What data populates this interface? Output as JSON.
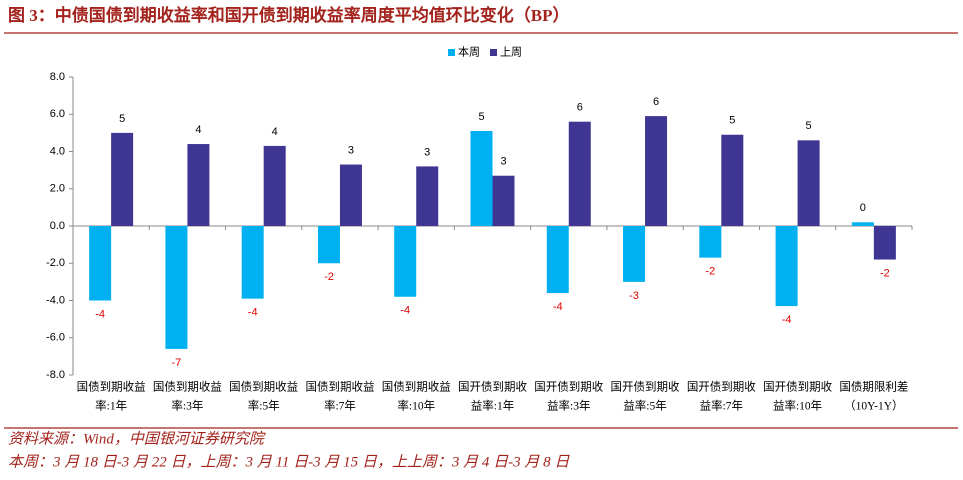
{
  "chart_data": {
    "type": "bar",
    "title": "图 3：中债国债到期收益率和国开债到期收益率周度平均值环比变化（BP）",
    "categories": [
      [
        "国债到期收益",
        "率:1年"
      ],
      [
        "国债到期收益",
        "率:3年"
      ],
      [
        "国债到期收益",
        "率:5年"
      ],
      [
        "国债到期收益",
        "率:7年"
      ],
      [
        "国债到期收益",
        "率:10年"
      ],
      [
        "国开债到期收",
        "益率:1年"
      ],
      [
        "国开债到期收",
        "益率:3年"
      ],
      [
        "国开债到期收",
        "益率:5年"
      ],
      [
        "国开债到期收",
        "益率:7年"
      ],
      [
        "国开债到期收",
        "益率:10年"
      ],
      [
        "国债期限利差",
        "（10Y-1Y）"
      ]
    ],
    "series": [
      {
        "name": "本周",
        "color": "#00b0f0",
        "values": [
          -4.0,
          -6.6,
          -3.9,
          -2.0,
          -3.8,
          5.1,
          -3.6,
          -3.0,
          -1.7,
          -4.3,
          0.2
        ],
        "value_labels": [
          "-4",
          "-7",
          "-4",
          "-2",
          "-4",
          "5",
          "-4",
          "-3",
          "-2",
          "-4",
          "0"
        ]
      },
      {
        "name": "上周",
        "color": "#3f3593",
        "values": [
          5.0,
          4.4,
          4.3,
          3.3,
          3.2,
          2.7,
          5.6,
          5.9,
          4.9,
          4.6,
          -1.8
        ],
        "value_labels": [
          "5",
          "4",
          "4",
          "3",
          "3",
          "3",
          "6",
          "6",
          "5",
          "5",
          "-2"
        ]
      }
    ],
    "ylim": [
      -8,
      8
    ],
    "yticks": [
      {
        "value": -8,
        "label": "-8.0"
      },
      {
        "value": -6,
        "label": "-6.0"
      },
      {
        "value": -4,
        "label": "-4.0"
      },
      {
        "value": -2,
        "label": "-2.0"
      },
      {
        "value": 0,
        "label": "0.0"
      },
      {
        "value": 2,
        "label": "2.0"
      },
      {
        "value": 4,
        "label": "4.0"
      },
      {
        "value": 6,
        "label": "6.0"
      },
      {
        "value": 8,
        "label": "8.0"
      }
    ],
    "source": "资料来源：Wind，中国银河证券研究院",
    "note": "本周：3 月 18 日-3 月 22 日，上周：3 月 11 日-3 月 15 日，上上周：3 月 4 日-3 月 8 日"
  }
}
